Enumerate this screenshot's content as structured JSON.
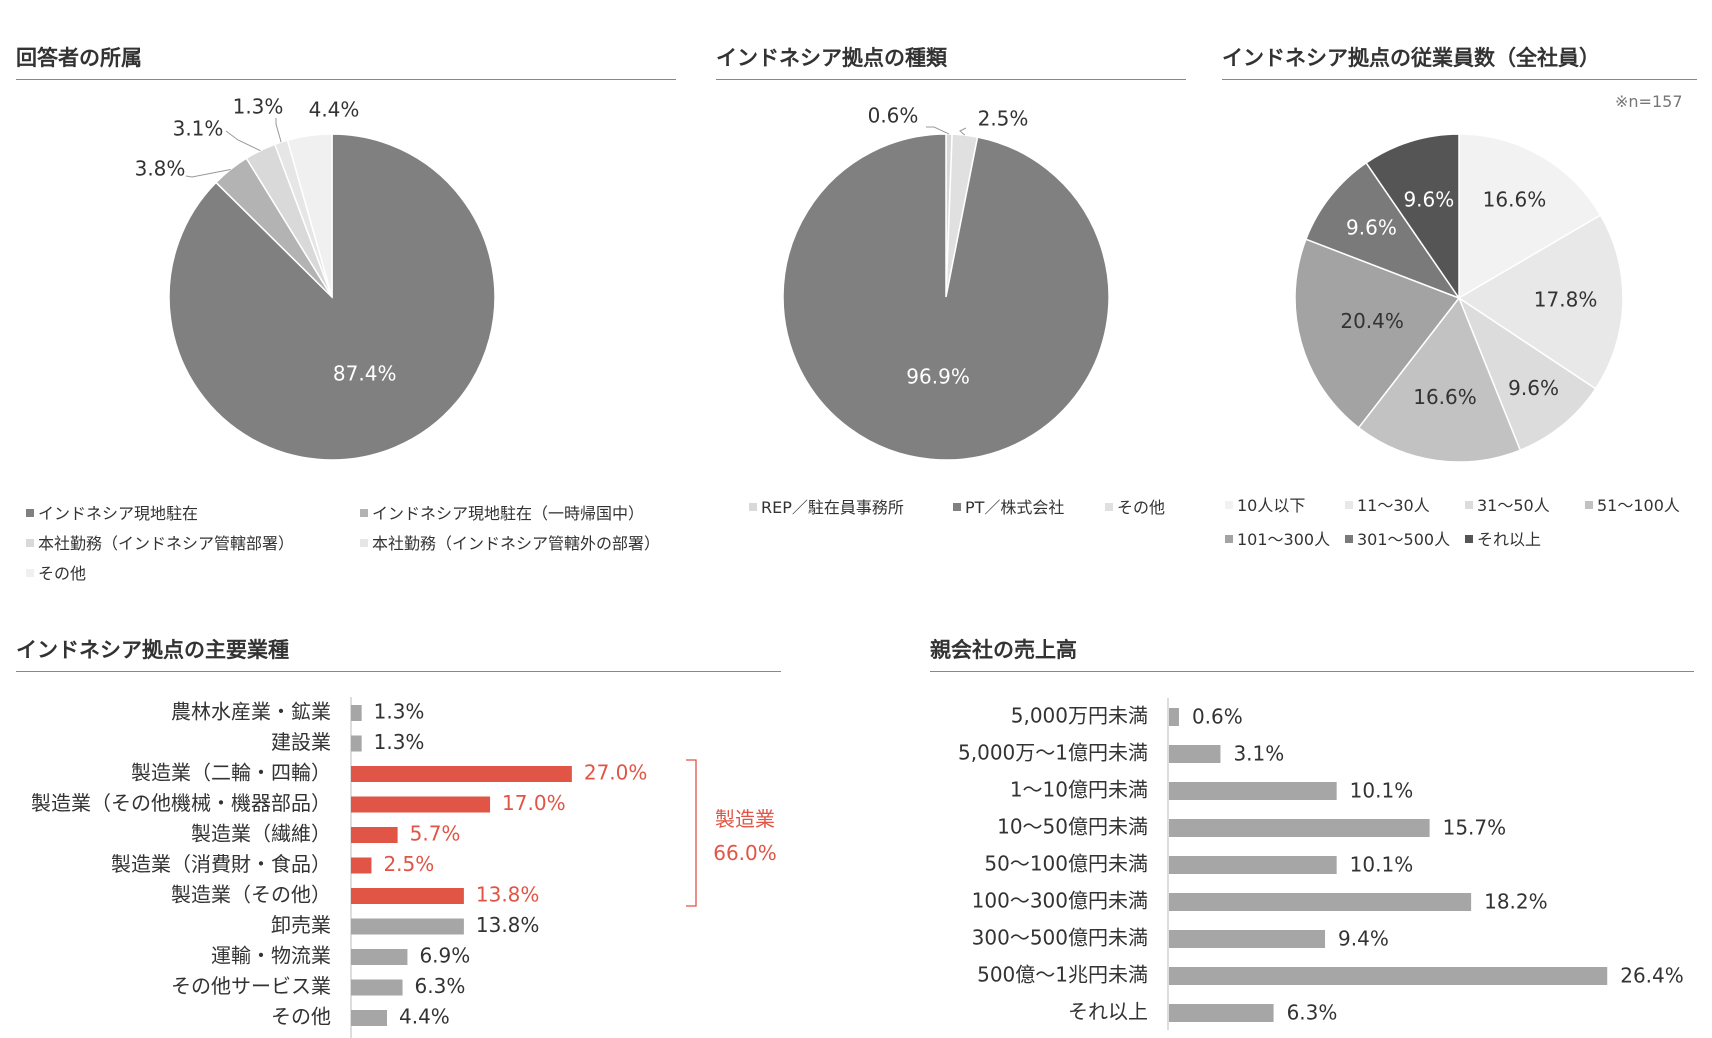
{
  "colors": {
    "red": "#e05545",
    "bar_gray": "#a6a6a6",
    "text": "#333333",
    "rule": "#888888"
  },
  "chart_data": [
    {
      "id": "affiliation",
      "type": "pie",
      "title": "回答者の所属",
      "labels": [
        "インドネシア現地駐在",
        "インドネシア現地駐在（一時帰国中）",
        "本社勤務（インドネシア管轄部署）",
        "本社勤務（インドネシア管轄外の部署）",
        "その他"
      ],
      "values": [
        87.4,
        3.8,
        3.1,
        1.3,
        4.4
      ],
      "value_labels": [
        "87.4%",
        "3.8%",
        "3.1%",
        "1.3%",
        "4.4%"
      ],
      "colors": [
        "#808080",
        "#b3b3b3",
        "#d9d9d9",
        "#e6e6e6",
        "#f0f0f0"
      ],
      "legend_placement": "bottom"
    },
    {
      "id": "base_type",
      "type": "pie",
      "title": "インドネシア拠点の種類",
      "labels": [
        "REP／駐在員事務所",
        "PT／株式会社",
        "その他"
      ],
      "values": [
        0.6,
        96.9,
        2.5
      ],
      "value_labels": [
        "0.6%",
        "96.9%",
        "2.5%"
      ],
      "colors": [
        "#d9d9d9",
        "#808080",
        "#e0e0e0"
      ],
      "legend_placement": "bottom"
    },
    {
      "id": "employees",
      "type": "pie",
      "title": "インドネシア拠点の従業員数（全社員）",
      "note": "※n=157",
      "labels": [
        "10人以下",
        "11～30人",
        "31～50人",
        "51～100人",
        "101～300人",
        "301～500人",
        "それ以上"
      ],
      "values": [
        16.6,
        17.8,
        9.6,
        16.6,
        20.4,
        9.6,
        9.6
      ],
      "value_labels": [
        "16.6%",
        "17.8%",
        "9.6%",
        "16.6%",
        "20.4%",
        "9.6%",
        "9.6%"
      ],
      "colors": [
        "#f2f2f2",
        "#e8e8e8",
        "#dcdcdc",
        "#c2c2c2",
        "#a3a3a3",
        "#7a7a7a",
        "#555555"
      ],
      "legend_placement": "bottom"
    },
    {
      "id": "industry",
      "type": "bar",
      "orientation": "horizontal",
      "title": "インドネシア拠点の主要業種",
      "categories": [
        "農林水産業・鉱業",
        "建設業",
        "製造業（二輪・四輪）",
        "製造業（その他機械・機器部品）",
        "製造業（繊維）",
        "製造業（消費財・食品）",
        "製造業（その他）",
        "卸売業",
        "運輸・物流業",
        "その他サービス業",
        "その他"
      ],
      "values": [
        1.3,
        1.3,
        27.0,
        17.0,
        5.7,
        2.5,
        13.8,
        13.8,
        6.9,
        6.3,
        4.4
      ],
      "value_labels": [
        "1.3%",
        "1.3%",
        "27.0%",
        "17.0%",
        "5.7%",
        "2.5%",
        "13.8%",
        "13.8%",
        "6.9%",
        "6.3%",
        "4.4%"
      ],
      "highlight": [
        false,
        false,
        true,
        true,
        true,
        true,
        true,
        false,
        false,
        false,
        false
      ],
      "annotation": {
        "label": "製造業",
        "value": "66.0%"
      },
      "xlim": [
        0,
        30
      ]
    },
    {
      "id": "sales",
      "type": "bar",
      "orientation": "horizontal",
      "title": "親会社の売上高",
      "categories": [
        "5,000万円未満",
        "5,000万～1億円未満",
        "1～10億円未満",
        "10～50億円未満",
        "50～100億円未満",
        "100～300億円未満",
        "300～500億円未満",
        "500億～1兆円未満",
        "それ以上"
      ],
      "values": [
        0.6,
        3.1,
        10.1,
        15.7,
        10.1,
        18.2,
        9.4,
        26.4,
        6.3
      ],
      "value_labels": [
        "0.6%",
        "3.1%",
        "10.1%",
        "15.7%",
        "10.1%",
        "18.2%",
        "9.4%",
        "26.4%",
        "6.3%"
      ],
      "xlim": [
        0,
        30
      ]
    }
  ]
}
